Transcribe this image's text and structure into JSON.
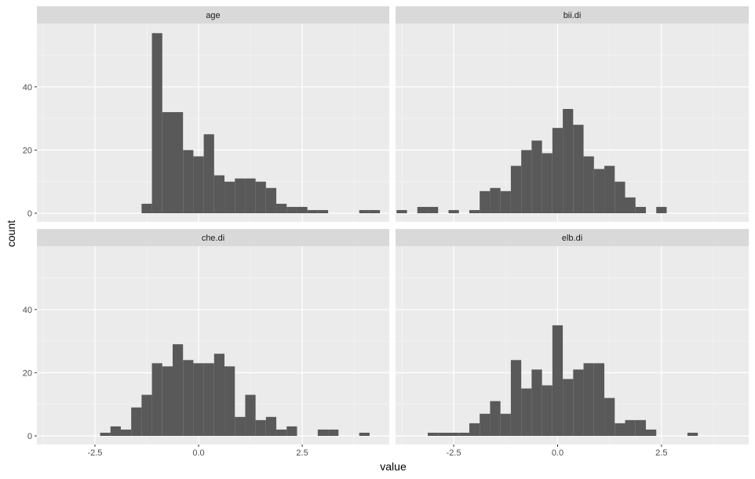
{
  "chart_data": {
    "type": "bar",
    "subtype": "histogram",
    "facet_layout": "2x2",
    "xlabel": "value",
    "ylabel": "count",
    "xlim": [
      -3.9,
      4.6
    ],
    "ylim": [
      0,
      57
    ],
    "x_breaks": [
      -2.5,
      0,
      2.5
    ],
    "x_tick_labels": [
      "-2.5",
      "0.0",
      "2.5"
    ],
    "y_breaks": [
      0,
      20,
      40
    ],
    "y_tick_labels": [
      "0",
      "20",
      "40"
    ],
    "bin_width": 0.25,
    "grid": true,
    "colors": {
      "bar": "#595959",
      "panel_background": "#ebebeb",
      "strip_background": "#d9d9d9",
      "grid_major": "#ffffff",
      "grid_minor": "#f5f5f5"
    },
    "panels": [
      {
        "name": "age",
        "bins": [
          {
            "x": -1.25,
            "count": 3
          },
          {
            "x": -1.0,
            "count": 57
          },
          {
            "x": -0.75,
            "count": 32
          },
          {
            "x": -0.5,
            "count": 32
          },
          {
            "x": -0.25,
            "count": 20
          },
          {
            "x": 0.0,
            "count": 18
          },
          {
            "x": 0.25,
            "count": 25
          },
          {
            "x": 0.5,
            "count": 12
          },
          {
            "x": 0.75,
            "count": 10
          },
          {
            "x": 1.0,
            "count": 11
          },
          {
            "x": 1.25,
            "count": 11
          },
          {
            "x": 1.5,
            "count": 10
          },
          {
            "x": 1.75,
            "count": 8
          },
          {
            "x": 2.0,
            "count": 3
          },
          {
            "x": 2.25,
            "count": 2
          },
          {
            "x": 2.5,
            "count": 2
          },
          {
            "x": 2.75,
            "count": 1
          },
          {
            "x": 3.0,
            "count": 1
          },
          {
            "x": 4.0,
            "count": 1
          },
          {
            "x": 4.25,
            "count": 1
          }
        ]
      },
      {
        "name": "bii.di",
        "bins": [
          {
            "x": -3.75,
            "count": 1
          },
          {
            "x": -3.25,
            "count": 2
          },
          {
            "x": -3.0,
            "count": 2
          },
          {
            "x": -2.5,
            "count": 1
          },
          {
            "x": -2.0,
            "count": 1
          },
          {
            "x": -1.75,
            "count": 7
          },
          {
            "x": -1.5,
            "count": 8
          },
          {
            "x": -1.25,
            "count": 7
          },
          {
            "x": -1.0,
            "count": 15
          },
          {
            "x": -0.75,
            "count": 20
          },
          {
            "x": -0.5,
            "count": 23
          },
          {
            "x": -0.25,
            "count": 19
          },
          {
            "x": 0.0,
            "count": 27
          },
          {
            "x": 0.25,
            "count": 33
          },
          {
            "x": 0.5,
            "count": 28
          },
          {
            "x": 0.75,
            "count": 18
          },
          {
            "x": 1.0,
            "count": 14
          },
          {
            "x": 1.25,
            "count": 15
          },
          {
            "x": 1.5,
            "count": 10
          },
          {
            "x": 1.75,
            "count": 5
          },
          {
            "x": 2.0,
            "count": 2
          },
          {
            "x": 2.5,
            "count": 2
          }
        ]
      },
      {
        "name": "che.di",
        "bins": [
          {
            "x": -2.25,
            "count": 1
          },
          {
            "x": -2.0,
            "count": 3
          },
          {
            "x": -1.75,
            "count": 2
          },
          {
            "x": -1.5,
            "count": 9
          },
          {
            "x": -1.25,
            "count": 13
          },
          {
            "x": -1.0,
            "count": 23
          },
          {
            "x": -0.75,
            "count": 22
          },
          {
            "x": -0.5,
            "count": 29
          },
          {
            "x": -0.25,
            "count": 24
          },
          {
            "x": 0.0,
            "count": 23
          },
          {
            "x": 0.25,
            "count": 23
          },
          {
            "x": 0.5,
            "count": 26
          },
          {
            "x": 0.75,
            "count": 22
          },
          {
            "x": 1.0,
            "count": 6
          },
          {
            "x": 1.25,
            "count": 13
          },
          {
            "x": 1.5,
            "count": 5
          },
          {
            "x": 1.75,
            "count": 6
          },
          {
            "x": 2.0,
            "count": 2
          },
          {
            "x": 2.25,
            "count": 3
          },
          {
            "x": 3.0,
            "count": 2
          },
          {
            "x": 3.25,
            "count": 2
          },
          {
            "x": 4.0,
            "count": 1
          }
        ]
      },
      {
        "name": "elb.di",
        "bins": [
          {
            "x": -3.0,
            "count": 1
          },
          {
            "x": -2.75,
            "count": 1
          },
          {
            "x": -2.5,
            "count": 1
          },
          {
            "x": -2.25,
            "count": 1
          },
          {
            "x": -2.0,
            "count": 4
          },
          {
            "x": -1.75,
            "count": 7
          },
          {
            "x": -1.5,
            "count": 11
          },
          {
            "x": -1.25,
            "count": 7
          },
          {
            "x": -1.0,
            "count": 24
          },
          {
            "x": -0.75,
            "count": 15
          },
          {
            "x": -0.5,
            "count": 21
          },
          {
            "x": -0.25,
            "count": 16
          },
          {
            "x": 0.0,
            "count": 35
          },
          {
            "x": 0.25,
            "count": 18
          },
          {
            "x": 0.5,
            "count": 21
          },
          {
            "x": 0.75,
            "count": 23
          },
          {
            "x": 1.0,
            "count": 23
          },
          {
            "x": 1.25,
            "count": 12
          },
          {
            "x": 1.5,
            "count": 4
          },
          {
            "x": 1.75,
            "count": 5
          },
          {
            "x": 2.0,
            "count": 5
          },
          {
            "x": 2.25,
            "count": 2
          },
          {
            "x": 3.25,
            "count": 1
          }
        ]
      }
    ]
  }
}
